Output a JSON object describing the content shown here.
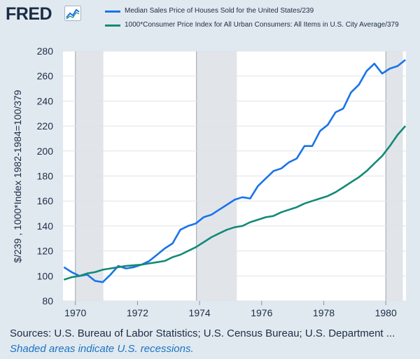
{
  "header": {
    "logo_text": "FRED",
    "logo_icon": "line-chart-icon",
    "series1_label": "Median Sales Price of Houses Sold for the United States/239",
    "series2_label": "1000*Consumer Price Index for All Urban Consumers: All Items in U.S. City Average/379"
  },
  "colors": {
    "background": "#e1e9f0",
    "plot_background": "#ffffff",
    "recession_shade": "#e1e5ea",
    "series1": "#1a73e8",
    "series2": "#138a77",
    "text": "#1b2c46",
    "note": "#1a73c2"
  },
  "chart_data": {
    "type": "line",
    "title": "",
    "xlabel": "",
    "ylabel": "$/239 , 1000*Index 1982-1984=100/379",
    "xlim": [
      1969.6,
      1980.65
    ],
    "ylim": [
      80,
      280
    ],
    "x_ticks": [
      1970,
      1972,
      1974,
      1976,
      1978,
      1980
    ],
    "x_tick_labels": [
      "1970",
      "1972",
      "1974",
      "1976",
      "1978",
      "1980"
    ],
    "y_ticks": [
      80,
      100,
      120,
      140,
      160,
      180,
      200,
      220,
      240,
      260,
      280
    ],
    "y_tick_labels": [
      "80",
      "100",
      "120",
      "140",
      "160",
      "180",
      "200",
      "220",
      "240",
      "260",
      "280"
    ],
    "grid": "horizontal",
    "recessions": [
      [
        1970.0,
        1970.9
      ],
      [
        1973.9,
        1975.2
      ],
      [
        1980.0,
        1980.55
      ]
    ],
    "series": [
      {
        "name": "Median Sales Price of Houses Sold for the United States/239",
        "x": [
          1969.63,
          1969.88,
          1970.13,
          1970.38,
          1970.63,
          1970.88,
          1971.13,
          1971.38,
          1971.63,
          1971.88,
          1972.13,
          1972.38,
          1972.63,
          1972.88,
          1973.13,
          1973.38,
          1973.63,
          1973.88,
          1974.13,
          1974.38,
          1974.63,
          1974.88,
          1975.13,
          1975.38,
          1975.63,
          1975.88,
          1976.13,
          1976.38,
          1976.63,
          1976.88,
          1977.13,
          1977.38,
          1977.63,
          1977.88,
          1978.13,
          1978.38,
          1978.63,
          1978.88,
          1979.13,
          1979.38,
          1979.63,
          1979.88,
          1980.13,
          1980.38,
          1980.63
        ],
        "values": [
          107,
          103,
          100,
          101,
          96,
          95,
          101,
          108,
          106,
          107,
          109,
          112,
          117,
          122,
          126,
          137,
          140,
          142,
          147,
          149,
          153,
          157,
          161,
          163,
          162,
          172,
          178,
          184,
          186,
          191,
          194,
          204,
          204,
          216,
          221,
          231,
          234,
          247,
          253,
          264,
          270,
          262,
          266,
          268,
          273
        ]
      },
      {
        "name": "1000*Consumer Price Index for All Urban Consumers: All Items in U.S. City Average/379",
        "x": [
          1969.63,
          1969.88,
          1970.13,
          1970.38,
          1970.63,
          1970.88,
          1971.13,
          1971.38,
          1971.63,
          1971.88,
          1972.13,
          1972.38,
          1972.63,
          1972.88,
          1973.13,
          1973.38,
          1973.63,
          1973.88,
          1974.13,
          1974.38,
          1974.63,
          1974.88,
          1975.13,
          1975.38,
          1975.63,
          1975.88,
          1976.13,
          1976.38,
          1976.63,
          1976.88,
          1977.13,
          1977.38,
          1977.63,
          1977.88,
          1978.13,
          1978.38,
          1978.63,
          1978.88,
          1979.13,
          1979.38,
          1979.63,
          1979.88,
          1980.13,
          1980.38,
          1980.63
        ],
        "values": [
          97,
          99,
          100,
          102,
          103,
          105,
          106,
          107,
          108,
          108.5,
          109,
          110,
          111,
          112,
          115,
          117,
          120,
          123,
          127,
          131,
          134,
          137,
          139,
          140,
          143,
          145,
          147,
          148,
          151,
          153,
          155,
          158,
          160,
          162,
          164,
          167,
          171,
          175,
          179,
          184,
          190,
          196,
          204,
          213,
          220
        ]
      }
    ]
  },
  "footer": {
    "source": "Sources: U.S. Bureau of Labor Statistics; U.S. Census Bureau; U.S. Department ...",
    "note": "Shaded areas indicate U.S. recessions."
  }
}
